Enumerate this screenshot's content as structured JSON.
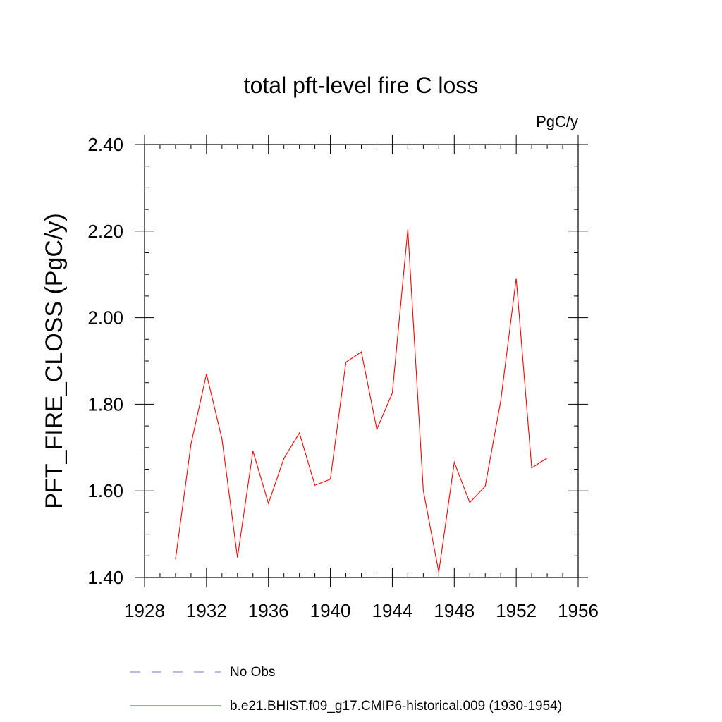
{
  "chart_data": {
    "type": "line",
    "title": "total pft-level fire C loss",
    "units_label": "PgC/y",
    "ylabel": "PFT_FIRE_CLOSS  (PgC/y)",
    "xlabel": "",
    "xlim": [
      1928,
      1956
    ],
    "ylim": [
      1.4,
      2.4
    ],
    "x_ticks": [
      1928,
      1932,
      1936,
      1940,
      1944,
      1948,
      1952,
      1956
    ],
    "y_ticks": [
      1.4,
      1.6,
      1.8,
      2.0,
      2.2,
      2.4
    ],
    "y_tick_labels": [
      "1.40",
      "1.60",
      "1.80",
      "2.00",
      "2.20",
      "2.40"
    ],
    "x_minor_step": 1,
    "y_minor_step": 0.05,
    "series": [
      {
        "name": "b.e21.BHIST.f09_g17.CMIP6-historical.009 (1930-1954)",
        "color": "#ff0000",
        "dash": "solid",
        "x": [
          1930,
          1931,
          1932,
          1933,
          1934,
          1935,
          1936,
          1937,
          1938,
          1939,
          1940,
          1941,
          1942,
          1943,
          1944,
          1945,
          1946,
          1947,
          1948,
          1949,
          1950,
          1951,
          1952,
          1953,
          1954
        ],
        "values": [
          1.442,
          1.708,
          1.87,
          1.72,
          1.446,
          1.692,
          1.571,
          1.675,
          1.734,
          1.613,
          1.627,
          1.897,
          1.921,
          1.742,
          1.826,
          2.204,
          1.601,
          1.412,
          1.666,
          1.573,
          1.611,
          1.808,
          2.091,
          1.653,
          1.676
        ]
      }
    ],
    "legend": [
      {
        "label": "No Obs",
        "color": "#7b6fd6",
        "dash": "dashed"
      },
      {
        "label": "b.e21.BHIST.f09_g17.CMIP6-historical.009 (1930-1954)",
        "color": "#ff0000",
        "dash": "solid"
      }
    ]
  }
}
